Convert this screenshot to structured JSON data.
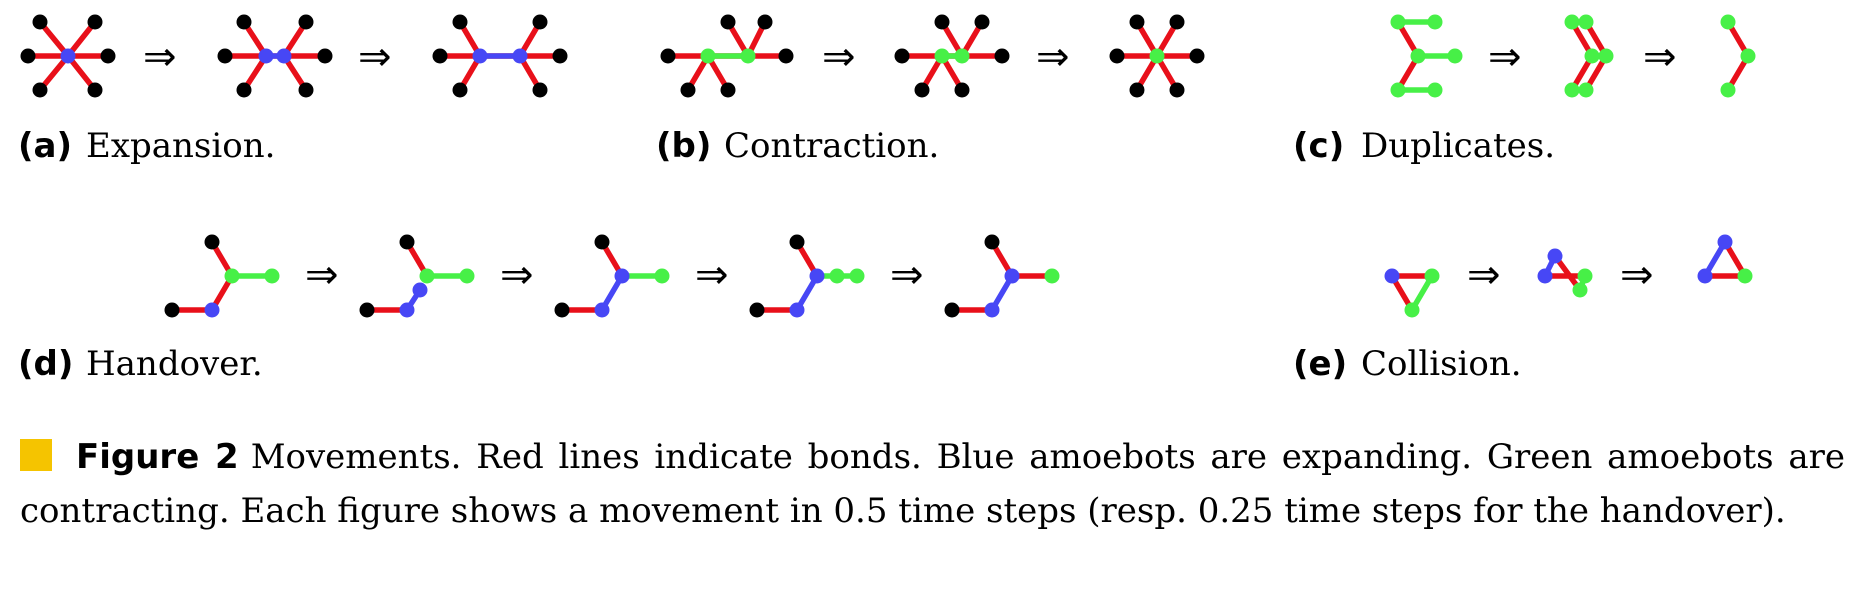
{
  "subfigures": {
    "a": {
      "tag": "(a)",
      "label": "Expansion."
    },
    "b": {
      "tag": "(b)",
      "label": "Contraction."
    },
    "c": {
      "tag": "(c)",
      "label": "Duplicates."
    },
    "d": {
      "tag": "(d)",
      "label": "Handover."
    },
    "e": {
      "tag": "(e)",
      "label": "Collision."
    }
  },
  "arrow_symbol": "⇒",
  "caption": {
    "number": "Figure 2",
    "text": "Movements. Red lines indicate bonds. Blue amoebots are expanding. Green amoebots are contracting. Each figure shows a movement in 0.5 time steps (resp. 0.25 time steps for the handover)."
  },
  "colors": {
    "bond": "#e8101a",
    "expanding": "#4747f5",
    "contracting": "#47f047",
    "static": "#000000",
    "marker": "#f5c400"
  }
}
